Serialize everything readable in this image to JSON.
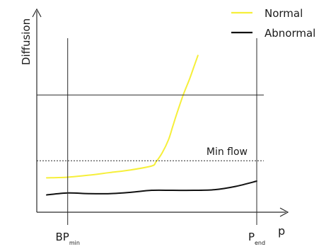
{
  "chart_data": {
    "type": "line",
    "ylabel": "Diffusion",
    "xlabel": "p",
    "xlim": [
      0,
      100
    ],
    "ylim": [
      0,
      100
    ],
    "grid": false,
    "legend_placement": "top-right",
    "x_markers": [
      {
        "x": 10,
        "main": "BP",
        "sub": "min"
      },
      {
        "x": 100,
        "main": "P",
        "sub": "end"
      }
    ],
    "h_lines": [
      {
        "y": 80,
        "style": "solid",
        "label": ""
      },
      {
        "y": 30,
        "style": "dotted",
        "label": "Min flow"
      }
    ],
    "series": [
      {
        "name": "Normal",
        "color": "#f6ef3a",
        "x": [
          0,
          10,
          20,
          30,
          40,
          50,
          52,
          55,
          58,
          60,
          62,
          65,
          68,
          70,
          72
        ],
        "y": [
          17,
          17.5,
          19,
          21,
          23,
          26,
          29,
          36,
          46,
          56,
          66,
          80,
          92,
          101,
          110
        ]
      },
      {
        "name": "Abnormal",
        "color": "#111111",
        "x": [
          0,
          10,
          20,
          30,
          40,
          50,
          60,
          70,
          80,
          90,
          100
        ],
        "y": [
          4,
          5.5,
          5,
          5,
          6,
          7.5,
          7.5,
          7.5,
          8,
          10.5,
          14.5
        ]
      }
    ]
  }
}
